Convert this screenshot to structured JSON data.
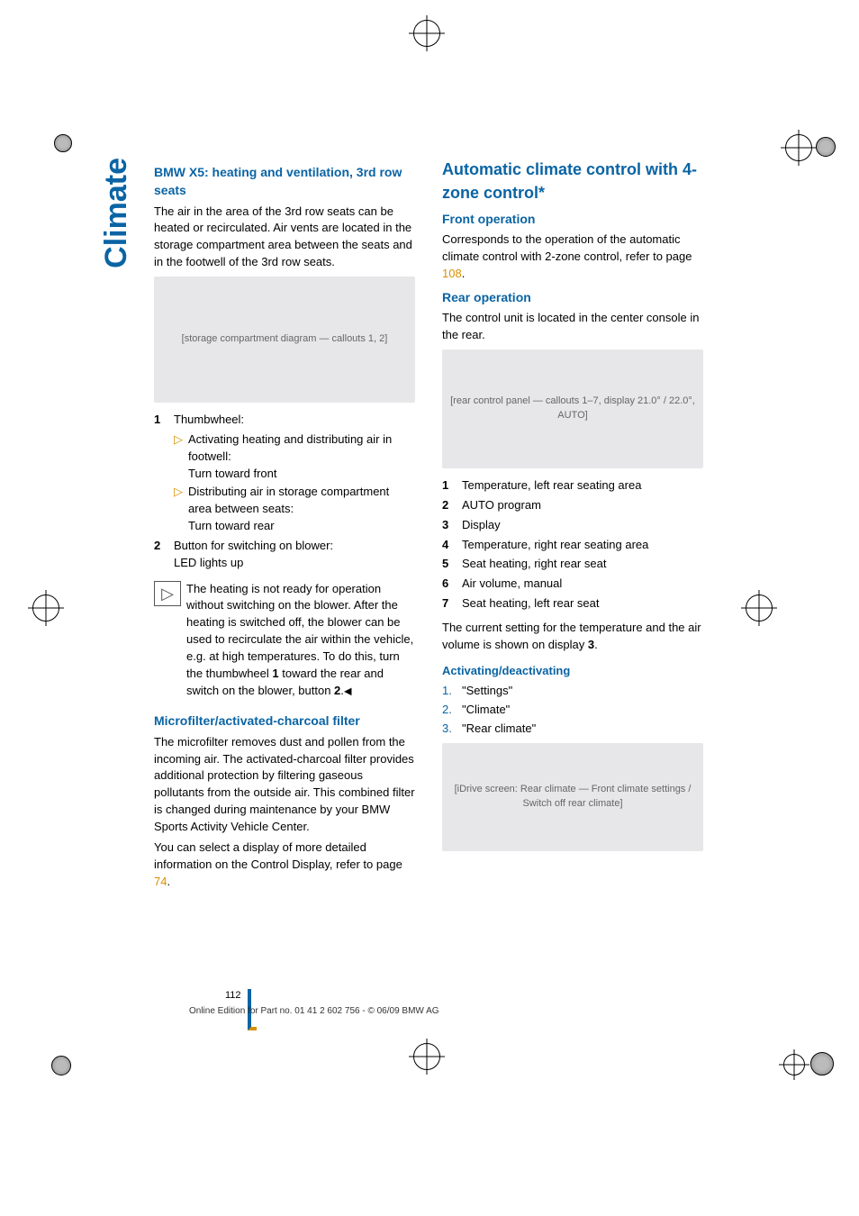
{
  "sideTab": "Climate",
  "pageNumber": "112",
  "footer": "Online Edition for Part no. 01 41 2 602 756 - © 06/09 BMW AG",
  "left": {
    "h_x5": "BMW X5: heating and ventilation, 3rd row seats",
    "x5_intro": "The air in the area of the 3rd row seats can be heated or recirculated. Air vents are located in the storage compartment area between the seats and in the footwell of the 3rd row seats.",
    "img1_alt": "[storage compartment diagram — callouts 1, 2]",
    "li1_n": "1",
    "li1_t": "Thumbwheel:",
    "li1a": "Activating heating and distributing air in footwell:\nTurn toward front",
    "li1b": "Distributing air in storage compartment area between seats:\nTurn toward rear",
    "li2_n": "2",
    "li2_t": "Button for switching on blower:\nLED lights up",
    "note": "The heating is not ready for operation without switching on the blower. After the heating is switched off, the blower can be used to recirculate the air within the vehicle, e.g. at high temperatures. To do this, turn the thumbwheel ",
    "note_b1": "1",
    "note_mid": " toward the rear and switch on the blower, button ",
    "note_b2": "2",
    "note_end": ".",
    "h_micro": "Microfilter/activated-charcoal filter",
    "micro_p1": "The microfilter removes dust and pollen from the incoming air. The activated-charcoal filter provides additional protection by filtering gaseous pollutants from the outside air. This combined filter is changed during maintenance by your BMW Sports Activity Vehicle Center.",
    "micro_p2a": "You can select a display of more detailed information on the Control Display, refer to page ",
    "micro_link": "74",
    "micro_p2b": "."
  },
  "right": {
    "h_auto": "Automatic climate control with 4-zone control*",
    "h_front": "Front operation",
    "front_p_a": "Corresponds to the operation of the automatic climate control with 2-zone control, refer to page ",
    "front_link": "108",
    "front_p_b": ".",
    "h_rear": "Rear operation",
    "rear_intro": "The control unit is located in the center console in the rear.",
    "img2_alt": "[rear control panel — callouts 1–7, display 21.0° / 22.0°, AUTO]",
    "items": [
      {
        "n": "1",
        "t": "Temperature, left rear seating area"
      },
      {
        "n": "2",
        "t": "AUTO program"
      },
      {
        "n": "3",
        "t": "Display"
      },
      {
        "n": "4",
        "t": "Temperature, right rear seating area"
      },
      {
        "n": "5",
        "t": "Seat heating, right rear seat"
      },
      {
        "n": "6",
        "t": "Air volume, manual"
      },
      {
        "n": "7",
        "t": "Seat heating, left rear seat"
      }
    ],
    "cur_a": "The current setting for the temperature and the air volume is shown on display ",
    "cur_b": "3",
    "cur_c": ".",
    "h_act": "Activating/deactivating",
    "steps": [
      {
        "n": "1.",
        "t": "\"Settings\""
      },
      {
        "n": "2.",
        "t": "\"Climate\""
      },
      {
        "n": "3.",
        "t": "\"Rear climate\""
      }
    ],
    "img3_alt": "[iDrive screen: Rear climate — Front climate settings / Switch off rear climate]"
  }
}
